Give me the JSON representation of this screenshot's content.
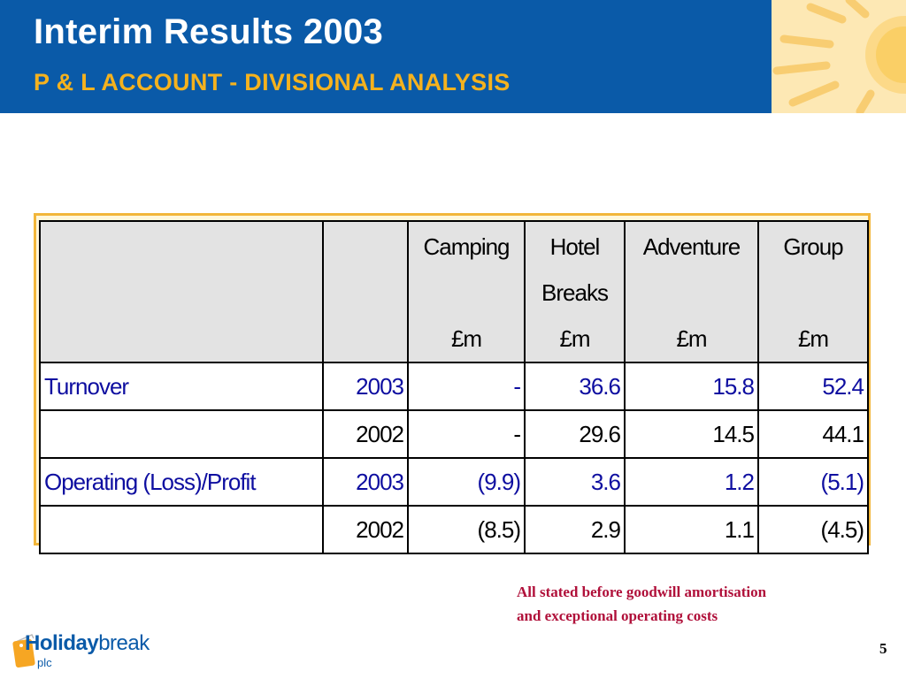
{
  "header": {
    "title": "Interim Results 2003",
    "subtitle": "P & L ACCOUNT - DIVISIONAL ANALYSIS"
  },
  "table": {
    "columns": [
      {
        "name": "Camping",
        "line2": "",
        "unit": "£m"
      },
      {
        "name": "Hotel",
        "line2": "Breaks",
        "unit": "£m"
      },
      {
        "name": "Adventure",
        "line2": "",
        "unit": "£m"
      },
      {
        "name": "Group",
        "line2": "",
        "unit": "£m"
      }
    ],
    "rows": [
      {
        "label": "Turnover",
        "year": "2003",
        "values": [
          "-",
          "36.6",
          "15.8",
          "52.4"
        ]
      },
      {
        "label": "",
        "year": "2002",
        "values": [
          "-",
          "29.6",
          "14.5",
          "44.1"
        ]
      },
      {
        "label": "Operating (Loss)/Profit",
        "year": "2003",
        "values": [
          "(9.9)",
          "3.6",
          "1.2",
          "(5.1)"
        ]
      },
      {
        "label": "",
        "year": "2002",
        "values": [
          "(8.5)",
          "2.9",
          "1.1",
          "(4.5)"
        ]
      }
    ]
  },
  "note": {
    "line1": "All stated before goodwill amortisation",
    "line2": "and exceptional operating costs"
  },
  "page_number": "5",
  "logo": {
    "holiday": "Holiday",
    "break": "break",
    "plc": "plc"
  },
  "colors": {
    "header_bg": "#0a5aa8",
    "subtitle": "#f5b21e",
    "highlight_text": "#0e0ea0",
    "note_text": "#b0103a",
    "frame": "#f2b63a"
  }
}
